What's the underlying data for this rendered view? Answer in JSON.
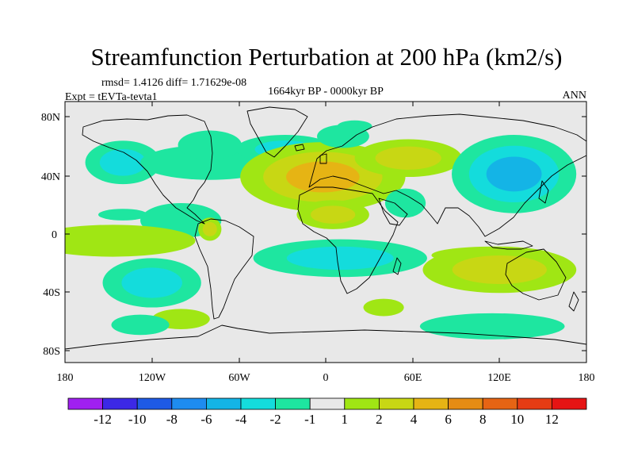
{
  "chart_data": {
    "type": "filled-contour-map",
    "title": "Streamfunction Perturbation at 200 hPa (km2/s)",
    "stats": "rmsd= 1.4126 diff= 1.71629e-08",
    "experiment": "Expt = tEVTa-tevta1",
    "period": "1664kyr BP - 0000kyr BP",
    "season": "ANN",
    "x_ticks": [
      "180",
      "120W",
      "60W",
      "0",
      "60E",
      "120E",
      "180"
    ],
    "y_ticks": [
      "80N",
      "40N",
      "0",
      "40S",
      "80S"
    ],
    "xlim": [
      -180,
      180
    ],
    "ylim": [
      -90,
      90
    ],
    "colorbar": {
      "labels": [
        "-12",
        "-10",
        "-8",
        "-6",
        "-4",
        "-2",
        "-1",
        "1",
        "2",
        "4",
        "6",
        "8",
        "10",
        "12"
      ],
      "colors": [
        "#a020f0",
        "#3c28e6",
        "#1e5ae6",
        "#1e8cf0",
        "#14b4e6",
        "#14dcdc",
        "#1ee6a0",
        "#e8e8e8",
        "#a0e614",
        "#c8d714",
        "#e6b414",
        "#e68c14",
        "#e66414",
        "#e63c14",
        "#e61414"
      ]
    },
    "anomalies": [
      {
        "lon": -140,
        "lat": 48,
        "rlon": 26,
        "rlat": 15,
        "levels": [
          -1,
          -2
        ]
      },
      {
        "lon": -80,
        "lat": 48,
        "rlon": 48,
        "rlat": 12,
        "levels": [
          -1
        ]
      },
      {
        "lon": -80,
        "lat": 60,
        "rlon": 22,
        "rlat": 10,
        "levels": [
          -1
        ]
      },
      {
        "lon": -28,
        "lat": 57,
        "rlon": 34,
        "rlat": 10,
        "levels": [
          -1,
          -2
        ]
      },
      {
        "lon": 20,
        "lat": 73,
        "rlon": 12,
        "rlat": 4,
        "levels": [
          -1
        ]
      },
      {
        "lon": -140,
        "lat": 12,
        "rlon": 17,
        "rlat": 4,
        "levels": [
          -1
        ]
      },
      {
        "lon": -100,
        "lat": 8,
        "rlon": 28,
        "rlat": 12,
        "levels": [
          -1
        ]
      },
      {
        "lon": -2,
        "lat": 38,
        "rlon": 57,
        "rlat": 24,
        "levels": [
          1,
          2,
          4
        ]
      },
      {
        "lon": 57,
        "lat": 51,
        "rlon": 37,
        "rlat": 13,
        "levels": [
          1,
          2
        ]
      },
      {
        "lon": -147,
        "lat": -6,
        "rlon": 57,
        "rlat": 11,
        "levels": [
          1
        ]
      },
      {
        "lon": 115,
        "lat": -16,
        "rlon": 42,
        "rlat": 6,
        "levels": [
          1
        ]
      },
      {
        "lon": -80,
        "lat": 2,
        "rlon": 8,
        "rlat": 8,
        "levels": [
          1,
          2
        ]
      },
      {
        "lon": 120,
        "lat": -26,
        "rlon": 53,
        "rlat": 16,
        "levels": [
          1,
          2
        ]
      },
      {
        "lon": -100,
        "lat": -60,
        "rlon": 20,
        "rlat": 7,
        "levels": [
          1
        ]
      },
      {
        "lon": 130,
        "lat": 40,
        "rlon": 43,
        "rlat": 27,
        "levels": [
          -1,
          -2,
          -4
        ]
      },
      {
        "lon": 55,
        "lat": 20,
        "rlon": 14,
        "rlat": 10,
        "levels": [
          -1
        ]
      },
      {
        "lon": 10,
        "lat": -18,
        "rlon": 60,
        "rlat": 13,
        "levels": [
          -1,
          -2
        ]
      },
      {
        "lon": -120,
        "lat": -35,
        "rlon": 34,
        "rlat": 17,
        "levels": [
          -1,
          -2
        ]
      },
      {
        "lon": -128,
        "lat": -64,
        "rlon": 20,
        "rlat": 7,
        "levels": [
          -1
        ]
      },
      {
        "lon": 40,
        "lat": -52,
        "rlon": 14,
        "rlat": 6,
        "levels": [
          1
        ]
      },
      {
        "lon": 115,
        "lat": -65,
        "rlon": 50,
        "rlat": 9,
        "levels": [
          -1
        ]
      },
      {
        "lon": 12,
        "lat": 66,
        "rlon": 18,
        "rlat": 8,
        "levels": [
          -1
        ]
      },
      {
        "lon": 5,
        "lat": 12,
        "rlon": 25,
        "rlat": 10,
        "levels": [
          1,
          2
        ]
      }
    ]
  }
}
